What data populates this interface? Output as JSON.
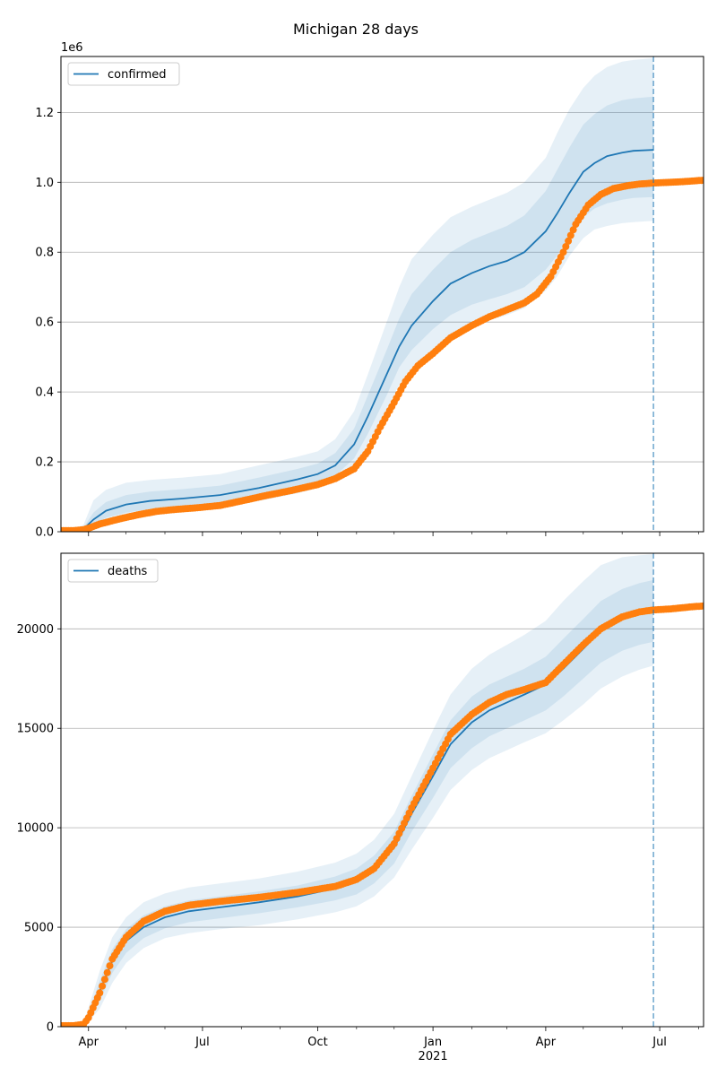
{
  "figure": {
    "title": "Michigan 28 days"
  },
  "colors": {
    "model": "#1f77b4",
    "observed": "#ff7f0e",
    "band": "#1f77b4",
    "grid": "#b0b0b0",
    "vline": "#1f77b4"
  },
  "x_axis": {
    "ticks": [
      {
        "date": "2020-04-01",
        "label": "Apr"
      },
      {
        "date": "2020-07-01",
        "label": "Jul"
      },
      {
        "date": "2020-10-01",
        "label": "Oct"
      },
      {
        "date": "2021-01-01",
        "label": "Jan",
        "sublabel": "2021"
      },
      {
        "date": "2021-04-01",
        "label": "Apr"
      },
      {
        "date": "2021-07-01",
        "label": "Jul"
      }
    ],
    "minor_tick_dates": [
      "2020-05-01",
      "2020-06-01",
      "2020-08-01",
      "2020-09-01",
      "2020-11-01",
      "2020-12-01",
      "2021-02-01",
      "2021-03-01",
      "2021-05-01",
      "2021-06-01",
      "2021-08-01"
    ]
  },
  "chart_data": [
    {
      "type": "line",
      "legend": "confirmed",
      "legend_position": "upper-left",
      "offset_label": "1e6",
      "grid": "horizontal",
      "xlim": [
        "2020-03-10",
        "2021-08-05"
      ],
      "ylim": [
        0,
        1.36
      ],
      "yticks": [
        {
          "value": 0,
          "label": "0.0"
        },
        {
          "value": 0.2,
          "label": "0.2"
        },
        {
          "value": 0.4,
          "label": "0.4"
        },
        {
          "value": 0.6,
          "label": "0.6"
        },
        {
          "value": 0.8,
          "label": "0.8"
        },
        {
          "value": 1.0,
          "label": "1.0"
        },
        {
          "value": 1.2,
          "label": "1.2"
        }
      ],
      "forecast_line_date": "2021-06-26",
      "model": {
        "x": [
          "2020-03-10",
          "2020-03-20",
          "2020-03-28",
          "2020-04-05",
          "2020-04-15",
          "2020-05-01",
          "2020-05-20",
          "2020-06-15",
          "2020-07-15",
          "2020-08-15",
          "2020-09-15",
          "2020-10-01",
          "2020-10-15",
          "2020-10-30",
          "2020-11-10",
          "2020-11-25",
          "2020-12-05",
          "2020-12-15",
          "2021-01-01",
          "2021-01-15",
          "2021-02-01",
          "2021-02-15",
          "2021-03-01",
          "2021-03-15",
          "2021-04-01",
          "2021-04-10",
          "2021-04-20",
          "2021-05-01",
          "2021-05-10",
          "2021-05-20",
          "2021-06-01",
          "2021-06-10",
          "2021-06-26"
        ],
        "y": [
          0.005,
          0.005,
          0.008,
          0.035,
          0.06,
          0.078,
          0.088,
          0.095,
          0.105,
          0.125,
          0.15,
          0.165,
          0.19,
          0.25,
          0.33,
          0.45,
          0.53,
          0.59,
          0.66,
          0.71,
          0.74,
          0.76,
          0.775,
          0.8,
          0.86,
          0.91,
          0.97,
          1.03,
          1.055,
          1.075,
          1.085,
          1.09,
          1.093
        ],
        "bands": [
          {
            "lower": [
              0.005,
              0.005,
              0.006,
              0.02,
              0.04,
              0.055,
              0.065,
              0.072,
              0.082,
              0.1,
              0.125,
              0.14,
              0.16,
              0.21,
              0.28,
              0.39,
              0.47,
              0.52,
              0.58,
              0.62,
              0.65,
              0.665,
              0.68,
              0.7,
              0.75,
              0.79,
              0.85,
              0.9,
              0.925,
              0.94,
              0.95,
              0.955,
              0.958
            ],
            "upper": [
              0.005,
              0.006,
              0.012,
              0.055,
              0.085,
              0.105,
              0.115,
              0.122,
              0.132,
              0.155,
              0.18,
              0.195,
              0.225,
              0.295,
              0.39,
              0.52,
              0.61,
              0.68,
              0.75,
              0.8,
              0.835,
              0.855,
              0.875,
              0.905,
              0.975,
              1.035,
              1.1,
              1.165,
              1.195,
              1.22,
              1.235,
              1.24,
              1.245
            ]
          },
          {
            "lower": [
              0.004,
              0.004,
              0.005,
              0.012,
              0.028,
              0.042,
              0.052,
              0.06,
              0.07,
              0.088,
              0.11,
              0.125,
              0.145,
              0.19,
              0.25,
              0.35,
              0.42,
              0.47,
              0.52,
              0.56,
              0.59,
              0.605,
              0.62,
              0.64,
              0.69,
              0.73,
              0.79,
              0.84,
              0.865,
              0.875,
              0.883,
              0.886,
              0.89
            ],
            "upper": [
              0.006,
              0.008,
              0.02,
              0.09,
              0.12,
              0.14,
              0.148,
              0.155,
              0.165,
              0.19,
              0.215,
              0.23,
              0.265,
              0.345,
              0.45,
              0.6,
              0.7,
              0.78,
              0.85,
              0.9,
              0.93,
              0.95,
              0.97,
              1.0,
              1.07,
              1.14,
              1.21,
              1.27,
              1.305,
              1.33,
              1.345,
              1.35,
              1.355
            ]
          }
        ]
      },
      "observed": {
        "x": [
          "2020-03-10",
          "2020-03-20",
          "2020-03-28",
          "2020-04-01",
          "2020-04-10",
          "2020-04-25",
          "2020-05-10",
          "2020-05-25",
          "2020-06-10",
          "2020-06-25",
          "2020-07-15",
          "2020-08-01",
          "2020-08-20",
          "2020-09-10",
          "2020-10-01",
          "2020-10-15",
          "2020-10-30",
          "2020-11-10",
          "2020-11-20",
          "2020-12-01",
          "2020-12-10",
          "2020-12-20",
          "2021-01-01",
          "2021-01-15",
          "2021-02-01",
          "2021-02-15",
          "2021-03-01",
          "2021-03-15",
          "2021-03-25",
          "2021-04-05",
          "2021-04-15",
          "2021-04-25",
          "2021-05-05",
          "2021-05-15",
          "2021-05-25",
          "2021-06-05",
          "2021-06-15",
          "2021-06-26",
          "2021-07-10",
          "2021-07-25",
          "2021-08-05"
        ],
        "y": [
          0.003,
          0.003,
          0.006,
          0.01,
          0.022,
          0.036,
          0.048,
          0.058,
          0.064,
          0.068,
          0.075,
          0.088,
          0.103,
          0.118,
          0.135,
          0.152,
          0.18,
          0.23,
          0.3,
          0.37,
          0.43,
          0.475,
          0.51,
          0.555,
          0.59,
          0.615,
          0.635,
          0.655,
          0.68,
          0.73,
          0.8,
          0.88,
          0.935,
          0.965,
          0.982,
          0.99,
          0.995,
          0.998,
          1.0,
          1.003,
          1.006
        ]
      }
    },
    {
      "type": "line",
      "legend": "deaths",
      "legend_position": "upper-left",
      "grid": "horizontal",
      "xlim": [
        "2020-03-10",
        "2021-08-05"
      ],
      "ylim": [
        0,
        23800
      ],
      "yticks": [
        {
          "value": 0,
          "label": "0"
        },
        {
          "value": 5000,
          "label": "5000"
        },
        {
          "value": 10000,
          "label": "10000"
        },
        {
          "value": 15000,
          "label": "15000"
        },
        {
          "value": 20000,
          "label": "20000"
        }
      ],
      "forecast_line_date": "2021-06-26",
      "model": {
        "x": [
          "2020-03-10",
          "2020-03-20",
          "2020-03-28",
          "2020-04-01",
          "2020-04-10",
          "2020-04-20",
          "2020-05-01",
          "2020-05-15",
          "2020-06-01",
          "2020-06-20",
          "2020-07-15",
          "2020-08-15",
          "2020-09-15",
          "2020-10-15",
          "2020-11-01",
          "2020-11-15",
          "2020-12-01",
          "2020-12-15",
          "2021-01-01",
          "2021-01-15",
          "2021-02-01",
          "2021-02-15",
          "2021-03-01",
          "2021-03-15",
          "2021-04-01",
          "2021-04-15",
          "2021-05-01",
          "2021-05-15",
          "2021-06-01",
          "2021-06-15",
          "2021-06-26"
        ],
        "y": [
          50,
          60,
          150,
          500,
          1800,
          3300,
          4300,
          5000,
          5500,
          5800,
          6000,
          6250,
          6550,
          6950,
          7300,
          7900,
          9000,
          10700,
          12600,
          14200,
          15300,
          15900,
          16300,
          16700,
          17200,
          18000,
          19000,
          19900,
          20500,
          20800,
          20900
        ],
        "bands": [
          {
            "lower": [
              50,
              55,
              120,
              350,
              1300,
              2700,
              3700,
              4450,
              4950,
              5250,
              5450,
              5700,
              6000,
              6350,
              6650,
              7200,
              8200,
              9800,
              11500,
              13000,
              14000,
              14600,
              15000,
              15400,
              15900,
              16600,
              17500,
              18300,
              18900,
              19200,
              19350
            ],
            "upper": [
              50,
              70,
              190,
              700,
              2300,
              3900,
              4900,
              5600,
              6050,
              6350,
              6550,
              6800,
              7100,
              7550,
              7950,
              8600,
              9800,
              11600,
              13700,
              15400,
              16600,
              17200,
              17600,
              18000,
              18600,
              19500,
              20500,
              21400,
              22000,
              22300,
              22450
            ]
          },
          {
            "lower": [
              40,
              50,
              100,
              250,
              900,
              2200,
              3200,
              3950,
              4450,
              4700,
              4900,
              5100,
              5400,
              5750,
              6050,
              6550,
              7500,
              8900,
              10500,
              11900,
              12900,
              13500,
              13900,
              14300,
              14750,
              15400,
              16200,
              17000,
              17600,
              17950,
              18150
            ],
            "upper": [
              60,
              80,
              240,
              950,
              2800,
              4500,
              5500,
              6250,
              6700,
              7000,
              7200,
              7450,
              7800,
              8250,
              8700,
              9400,
              10700,
              12600,
              14900,
              16700,
              18000,
              18700,
              19200,
              19700,
              20400,
              21400,
              22400,
              23200,
              23600,
              23700,
              23750
            ]
          }
        ]
      },
      "observed": {
        "x": [
          "2020-03-10",
          "2020-03-20",
          "2020-03-28",
          "2020-04-01",
          "2020-04-10",
          "2020-04-20",
          "2020-05-01",
          "2020-05-15",
          "2020-06-01",
          "2020-06-20",
          "2020-07-15",
          "2020-08-15",
          "2020-09-15",
          "2020-10-15",
          "2020-11-01",
          "2020-11-15",
          "2020-12-01",
          "2020-12-15",
          "2021-01-01",
          "2021-01-15",
          "2021-02-01",
          "2021-02-15",
          "2021-03-01",
          "2021-03-15",
          "2021-04-01",
          "2021-04-15",
          "2021-05-01",
          "2021-05-15",
          "2021-06-01",
          "2021-06-15",
          "2021-06-26",
          "2021-07-10",
          "2021-07-25",
          "2021-08-05"
        ],
        "y": [
          50,
          50,
          120,
          450,
          1700,
          3400,
          4500,
          5300,
          5800,
          6100,
          6300,
          6500,
          6750,
          7050,
          7400,
          7950,
          9200,
          11000,
          13000,
          14700,
          15700,
          16300,
          16700,
          16950,
          17300,
          18200,
          19200,
          20000,
          20600,
          20850,
          20950,
          21000,
          21100,
          21150
        ]
      }
    }
  ]
}
